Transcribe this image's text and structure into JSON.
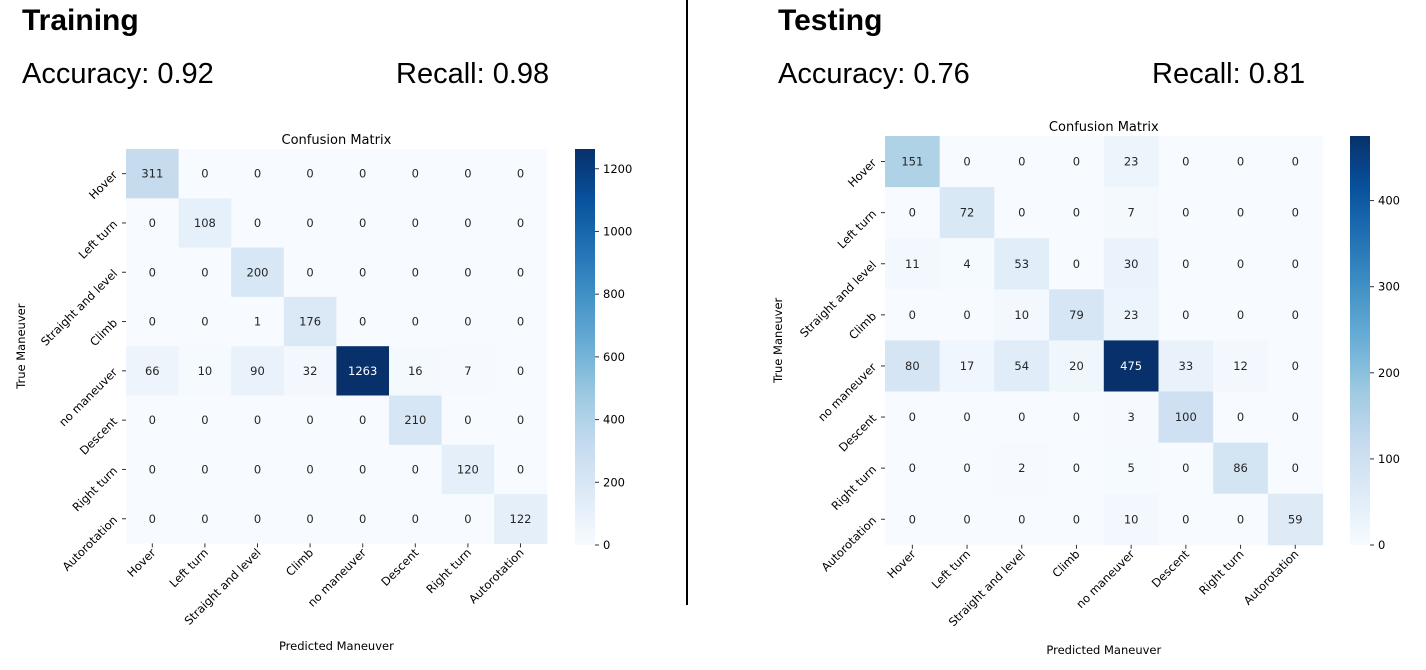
{
  "panels": [
    {
      "heading": "Training",
      "accuracy_text": "Accuracy: 0.92",
      "recall_text": "Recall: 0.98"
    },
    {
      "heading": "Testing",
      "accuracy_text": "Accuracy: 0.76",
      "recall_text": "Recall: 0.81"
    }
  ],
  "chart_data": [
    {
      "type": "heatmap",
      "title": "Confusion Matrix",
      "xlabel": "Predicted Maneuver",
      "ylabel": "True Maneuver",
      "labels": [
        "Hover",
        "Left turn",
        "Straight and level",
        "Climb",
        "no maneuver",
        "Descent",
        "Right turn",
        "Autorotation"
      ],
      "matrix": [
        [
          311,
          0,
          0,
          0,
          0,
          0,
          0,
          0
        ],
        [
          0,
          108,
          0,
          0,
          0,
          0,
          0,
          0
        ],
        [
          0,
          0,
          200,
          0,
          0,
          0,
          0,
          0
        ],
        [
          0,
          0,
          1,
          176,
          0,
          0,
          0,
          0
        ],
        [
          66,
          10,
          90,
          32,
          1263,
          16,
          7,
          0
        ],
        [
          0,
          0,
          0,
          0,
          0,
          210,
          0,
          0
        ],
        [
          0,
          0,
          0,
          0,
          0,
          0,
          120,
          0
        ],
        [
          0,
          0,
          0,
          0,
          0,
          0,
          0,
          122
        ]
      ],
      "colorbar": {
        "min": 0,
        "max": 1263,
        "ticks": [
          0,
          200,
          400,
          600,
          800,
          1000,
          1200
        ]
      },
      "colormap": [
        "#f7fbff",
        "#deebf7",
        "#c6dbef",
        "#9ecae1",
        "#6baed6",
        "#4292c6",
        "#2171b5",
        "#08519c",
        "#08306b"
      ]
    },
    {
      "type": "heatmap",
      "title": "Confusion Matrix",
      "xlabel": "Predicted Maneuver",
      "ylabel": "True Maneuver",
      "labels": [
        "Hover",
        "Left turn",
        "Straight and level",
        "Climb",
        "no maneuver",
        "Descent",
        "Right turn",
        "Autorotation"
      ],
      "matrix": [
        [
          151,
          0,
          0,
          0,
          23,
          0,
          0,
          0
        ],
        [
          0,
          72,
          0,
          0,
          7,
          0,
          0,
          0
        ],
        [
          11,
          4,
          53,
          0,
          30,
          0,
          0,
          0
        ],
        [
          0,
          0,
          10,
          79,
          23,
          0,
          0,
          0
        ],
        [
          80,
          17,
          54,
          20,
          475,
          33,
          12,
          0
        ],
        [
          0,
          0,
          0,
          0,
          3,
          100,
          0,
          0
        ],
        [
          0,
          0,
          2,
          0,
          5,
          0,
          86,
          0
        ],
        [
          0,
          0,
          0,
          0,
          10,
          0,
          0,
          59
        ]
      ],
      "colorbar": {
        "min": 0,
        "max": 475,
        "ticks": [
          0,
          100,
          200,
          300,
          400
        ]
      },
      "colormap": [
        "#f7fbff",
        "#deebf7",
        "#c6dbef",
        "#9ecae1",
        "#6baed6",
        "#4292c6",
        "#2171b5",
        "#08519c",
        "#08306b"
      ]
    }
  ]
}
